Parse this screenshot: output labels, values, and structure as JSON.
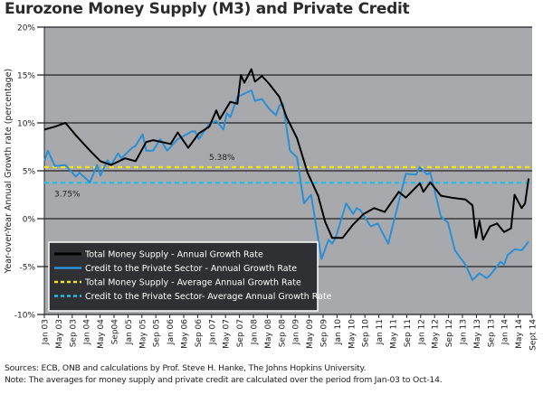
{
  "chart_data": {
    "type": "line",
    "title": "Eurozone Money Supply (M3) and Private Credit",
    "ylabel": "Year-over-Year Annual Growth rate (percentage)",
    "xlabel": "",
    "ylim": [
      -10,
      20
    ],
    "yticks": [
      -10,
      -5,
      0,
      5,
      10,
      15,
      20
    ],
    "ytick_labels": [
      "-10%",
      "-5%",
      "0%",
      "5%",
      "10%",
      "15%",
      "20%"
    ],
    "xlim": [
      "2003-01",
      "2014-08"
    ],
    "xtick_labels": [
      "Jan 03",
      "May 03",
      "Sep 03",
      "Jan 04",
      "May 04",
      "Sep04",
      "Jan 05",
      "May 05",
      "Sep 05",
      "Jan 06",
      "May 06",
      "Sep 06",
      "Jan 07",
      "May 07",
      "Sep 07",
      "Jan 08",
      "May 08",
      "Sep 08",
      "Jan 09",
      "May 09",
      "Sep 09",
      "Jan 10",
      "May 10",
      "Sep 10",
      "Jan 11",
      "May 11",
      "Sep 11",
      "Jan 12",
      "May 12",
      "Sep 12",
      "Jan 13",
      "May 13",
      "Sep 13",
      "Jan 14",
      "May 14",
      "Sept 14"
    ],
    "grid": "horizontal",
    "background": "#a7a9ac",
    "legend_placement": "bottom-left",
    "series": [
      {
        "name": "Total Money Supply - Annual Growth Rate",
        "color": "#000000",
        "points": [
          [
            "2003-01",
            9.3
          ],
          [
            "2003-04",
            9.6
          ],
          [
            "2003-07",
            10.0
          ],
          [
            "2003-10",
            8.7
          ],
          [
            "2004-02",
            7.1
          ],
          [
            "2004-05",
            6.0
          ],
          [
            "2004-08",
            5.6
          ],
          [
            "2004-12",
            6.3
          ],
          [
            "2005-03",
            6.0
          ],
          [
            "2005-06",
            8.0
          ],
          [
            "2005-08",
            8.2
          ],
          [
            "2006-01",
            7.8
          ],
          [
            "2006-03",
            9.0
          ],
          [
            "2006-06",
            7.4
          ],
          [
            "2006-09",
            8.9
          ],
          [
            "2006-12",
            9.6
          ],
          [
            "2007-02",
            11.3
          ],
          [
            "2007-03",
            10.4
          ],
          [
            "2007-06",
            12.2
          ],
          [
            "2007-08",
            12.0
          ],
          [
            "2007-09",
            15.0
          ],
          [
            "2007-10",
            14.2
          ],
          [
            "2007-12",
            15.6
          ],
          [
            "2008-01",
            14.3
          ],
          [
            "2008-03",
            14.9
          ],
          [
            "2008-05",
            14.1
          ],
          [
            "2008-08",
            12.7
          ],
          [
            "2008-10",
            10.6
          ],
          [
            "2009-01",
            8.4
          ],
          [
            "2009-04",
            4.8
          ],
          [
            "2009-07",
            2.4
          ],
          [
            "2009-09",
            -0.3
          ],
          [
            "2009-11",
            -2.0
          ],
          [
            "2010-02",
            -2.0
          ],
          [
            "2010-05",
            -0.6
          ],
          [
            "2010-08",
            0.5
          ],
          [
            "2010-11",
            1.1
          ],
          [
            "2011-02",
            0.7
          ],
          [
            "2011-06",
            2.8
          ],
          [
            "2011-08",
            2.2
          ],
          [
            "2011-12",
            3.7
          ],
          [
            "2012-01",
            2.8
          ],
          [
            "2012-03",
            3.8
          ],
          [
            "2012-06",
            2.4
          ],
          [
            "2012-09",
            2.2
          ],
          [
            "2013-01",
            2.0
          ],
          [
            "2013-03",
            1.4
          ],
          [
            "2013-04",
            -2.0
          ],
          [
            "2013-05",
            -0.2
          ],
          [
            "2013-06",
            -2.2
          ],
          [
            "2013-08",
            -0.8
          ],
          [
            "2013-10",
            -0.5
          ],
          [
            "2013-12",
            -1.4
          ],
          [
            "2014-02",
            -1.0
          ],
          [
            "2014-03",
            2.5
          ],
          [
            "2014-05",
            1.1
          ],
          [
            "2014-06",
            1.6
          ],
          [
            "2014-07",
            4.2
          ]
        ]
      },
      {
        "name": "Credit to the Private Sector - Annual Growth Rate",
        "color": "#2b8fd6",
        "points": [
          [
            "2003-01",
            6.0
          ],
          [
            "2003-02",
            7.1
          ],
          [
            "2003-04",
            5.5
          ],
          [
            "2003-07",
            5.6
          ],
          [
            "2003-10",
            4.4
          ],
          [
            "2003-11",
            4.8
          ],
          [
            "2004-02",
            3.8
          ],
          [
            "2004-04",
            5.6
          ],
          [
            "2004-05",
            4.5
          ],
          [
            "2004-07",
            6.1
          ],
          [
            "2004-08",
            5.6
          ],
          [
            "2004-10",
            6.8
          ],
          [
            "2004-11",
            6.3
          ],
          [
            "2005-02",
            7.4
          ],
          [
            "2005-03",
            7.6
          ],
          [
            "2005-05",
            8.8
          ],
          [
            "2005-06",
            7.1
          ],
          [
            "2005-08",
            7.1
          ],
          [
            "2005-10",
            8.3
          ],
          [
            "2005-12",
            7.1
          ],
          [
            "2006-03",
            8.3
          ],
          [
            "2006-07",
            9.1
          ],
          [
            "2006-08",
            9.1
          ],
          [
            "2006-09",
            8.3
          ],
          [
            "2006-12",
            9.9
          ],
          [
            "2007-02",
            10.2
          ],
          [
            "2007-04",
            9.3
          ],
          [
            "2007-05",
            11.0
          ],
          [
            "2007-06",
            10.6
          ],
          [
            "2007-08",
            12.7
          ],
          [
            "2007-12",
            13.4
          ],
          [
            "2008-01",
            12.3
          ],
          [
            "2008-03",
            12.5
          ],
          [
            "2008-05",
            11.5
          ],
          [
            "2008-07",
            10.8
          ],
          [
            "2008-08",
            11.8
          ],
          [
            "2008-09",
            12.0
          ],
          [
            "2008-11",
            7.1
          ],
          [
            "2009-01",
            6.4
          ],
          [
            "2009-03",
            1.6
          ],
          [
            "2009-05",
            2.5
          ],
          [
            "2009-08",
            -4.2
          ],
          [
            "2009-10",
            -2.2
          ],
          [
            "2009-11",
            -2.6
          ],
          [
            "2009-12",
            -2.0
          ],
          [
            "2010-03",
            1.6
          ],
          [
            "2010-05",
            0.5
          ],
          [
            "2010-06",
            1.1
          ],
          [
            "2010-07",
            0.9
          ],
          [
            "2010-10",
            -0.8
          ],
          [
            "2010-12",
            -0.5
          ],
          [
            "2011-03",
            -2.6
          ],
          [
            "2011-08",
            4.7
          ],
          [
            "2011-11",
            4.6
          ],
          [
            "2011-12",
            5.4
          ],
          [
            "2012-02",
            4.6
          ],
          [
            "2012-03",
            4.8
          ],
          [
            "2012-06",
            0.2
          ],
          [
            "2012-08",
            -0.4
          ],
          [
            "2012-10",
            -3.3
          ],
          [
            "2013-01",
            -4.8
          ],
          [
            "2013-03",
            -6.4
          ],
          [
            "2013-05",
            -5.7
          ],
          [
            "2013-07",
            -6.2
          ],
          [
            "2013-08",
            -5.9
          ],
          [
            "2013-11",
            -4.5
          ],
          [
            "2013-12",
            -4.8
          ],
          [
            "2014-01",
            -3.8
          ],
          [
            "2014-03",
            -3.2
          ],
          [
            "2014-05",
            -3.3
          ],
          [
            "2014-07",
            -2.4
          ]
        ]
      },
      {
        "name": "Total Money Supply - Average Annual Growth Rate",
        "color": "#f5e211",
        "style": "dashed",
        "value": 5.38,
        "label": "5.38%"
      },
      {
        "name": "Credit to the Private Sector- Average Annual Growth Rate",
        "color": "#1fc0e8",
        "style": "dashed",
        "value": 3.75,
        "label": "3.75%"
      }
    ],
    "sources": "Sources: ECB, ONB and calculations by Prof. Steve H. Hanke, The Johns Hopkins University.",
    "note": "Note: The averages for money supply and private credit are calculated over the period from Jan-03 to Oct-14."
  }
}
